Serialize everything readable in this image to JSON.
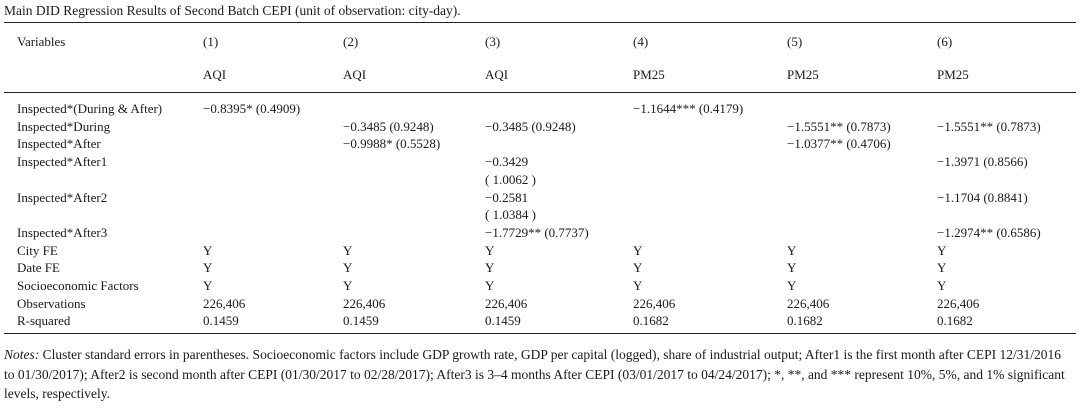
{
  "caption": "Main DID Regression Results of Second Batch CEPI (unit of observation: city-day).",
  "header": {
    "variables_label": "Variables",
    "columns": [
      {
        "num": "(1)",
        "dep": "AQI"
      },
      {
        "num": "(2)",
        "dep": "AQI"
      },
      {
        "num": "(3)",
        "dep": "AQI"
      },
      {
        "num": "(4)",
        "dep": "PM25"
      },
      {
        "num": "(5)",
        "dep": "PM25"
      },
      {
        "num": "(6)",
        "dep": "PM25"
      }
    ]
  },
  "rows": [
    {
      "label": "Inspected*(During & After)",
      "cells": [
        "−0.8395* (0.4909)",
        "",
        "",
        "−1.1644*** (0.4179)",
        "",
        ""
      ]
    },
    {
      "label": "Inspected*During",
      "cells": [
        "",
        "−0.3485 (0.9248)",
        "−0.3485 (0.9248)",
        "",
        "−1.5551** (0.7873)",
        "−1.5551** (0.7873)"
      ]
    },
    {
      "label": "Inspected*After",
      "cells": [
        "",
        "−0.9988* (0.5528)",
        "",
        "",
        "−1.0377** (0.4706)",
        ""
      ]
    },
    {
      "label": "Inspected*After1",
      "cells": [
        "",
        "",
        "−0.3429",
        "",
        "",
        "−1.3971 (0.8566)"
      ]
    },
    {
      "label": "",
      "cells": [
        "",
        "",
        "( 1.0062 )",
        "",
        "",
        ""
      ]
    },
    {
      "label": "Inspected*After2",
      "cells": [
        "",
        "",
        "−0.2581",
        "",
        "",
        "−1.1704 (0.8841)"
      ]
    },
    {
      "label": "",
      "cells": [
        "",
        "",
        "( 1.0384 )",
        "",
        "",
        ""
      ]
    },
    {
      "label": "Inspected*After3",
      "cells": [
        "",
        "",
        "−1.7729** (0.7737)",
        "",
        "",
        "−1.2974** (0.6586)"
      ]
    },
    {
      "label": "City FE",
      "cells": [
        "Y",
        "Y",
        "Y",
        "Y",
        "Y",
        "Y"
      ]
    },
    {
      "label": "Date FE",
      "cells": [
        "Y",
        "Y",
        "Y",
        "Y",
        "Y",
        "Y"
      ]
    },
    {
      "label": "Socioeconomic Factors",
      "cells": [
        "Y",
        "Y",
        "Y",
        "Y",
        "Y",
        "Y"
      ]
    },
    {
      "label": "Observations",
      "cells": [
        "226,406",
        "226,406",
        "226,406",
        "226,406",
        "226,406",
        "226,406"
      ]
    },
    {
      "label": "R-squared",
      "cells": [
        "0.1459",
        "0.1459",
        "0.1459",
        "0.1682",
        "0.1682",
        "0.1682"
      ]
    }
  ],
  "notes": {
    "lead": "Notes:",
    "text": " Cluster standard errors in parentheses. Socioeconomic factors include GDP growth rate, GDP per capital (logged), share of industrial output; After1 is the first month after CEPI 12/31/2016 to 01/30/2017); After2 is second month after CEPI (01/30/2017 to 02/28/2017); After3 is 3–4 months After CEPI (03/01/2017 to 04/24/2017); *, **, and *** represent 10%, 5%, and 1% significant levels, respectively."
  }
}
